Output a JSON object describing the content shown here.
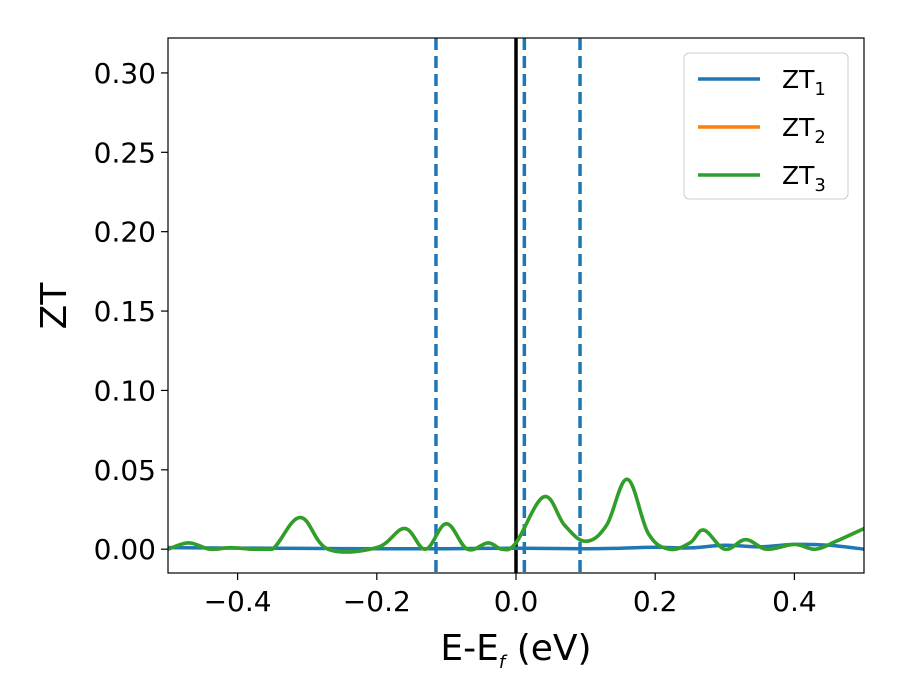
{
  "chart_data": {
    "type": "line",
    "xlabel": "E-E",
    "xlabel_sub": "f",
    "xlabel_unit": " (eV)",
    "ylabel": "ZT",
    "xlim": [
      -0.5,
      0.5
    ],
    "ylim": [
      -0.015,
      0.322
    ],
    "x_ticks": [
      -0.4,
      -0.2,
      0.0,
      0.2,
      0.4
    ],
    "x_tick_labels": [
      "−0.4",
      "−0.2",
      "0.0",
      "0.2",
      "0.4"
    ],
    "y_ticks": [
      0.0,
      0.05,
      0.1,
      0.15,
      0.2,
      0.25,
      0.3
    ],
    "y_tick_labels": [
      "0.00",
      "0.05",
      "0.10",
      "0.15",
      "0.20",
      "0.25",
      "0.30"
    ],
    "grid": false,
    "legend_position": "top-right",
    "vertical_lines": [
      {
        "x": 0.0,
        "style": "solid",
        "color": "#000000"
      },
      {
        "x": -0.115,
        "style": "dashed",
        "color": "#1f77b4"
      },
      {
        "x": 0.012,
        "style": "dashed",
        "color": "#1f77b4"
      },
      {
        "x": 0.092,
        "style": "dashed",
        "color": "#1f77b4"
      }
    ],
    "series": [
      {
        "name": "ZT",
        "name_sub": "1",
        "color": "#1f77b4",
        "x": [
          -0.5,
          -0.4,
          -0.3,
          -0.2,
          -0.1,
          0.0,
          0.1,
          0.15,
          0.2,
          0.25,
          0.3,
          0.35,
          0.4,
          0.45,
          0.5
        ],
        "y": [
          0.001,
          0.0007,
          0.0005,
          0.0003,
          0.0003,
          0.0006,
          0.0003,
          0.0006,
          0.0012,
          0.0008,
          0.0025,
          0.0015,
          0.003,
          0.0025,
          0.0
        ]
      },
      {
        "name": "ZT",
        "name_sub": "2",
        "color": "#ff7f0e",
        "x": [
          -0.5,
          -0.47,
          -0.44,
          -0.41,
          -0.38,
          -0.35,
          -0.31,
          -0.27,
          -0.2,
          -0.16,
          -0.13,
          -0.1,
          -0.07,
          -0.04,
          -0.02,
          0.0,
          0.04,
          0.07,
          0.1,
          0.13,
          0.16,
          0.19,
          0.22,
          0.25,
          0.27,
          0.3,
          0.33,
          0.36,
          0.4,
          0.43,
          0.46,
          0.5
        ],
        "y": [
          0.0,
          0.004,
          0.0,
          0.001,
          0.0,
          0.0,
          0.02,
          0.0,
          0.001,
          0.013,
          0.0,
          0.016,
          0.0,
          0.004,
          0.0,
          0.004,
          0.033,
          0.015,
          0.005,
          0.015,
          0.044,
          0.01,
          0.0,
          0.004,
          0.012,
          0.0,
          0.006,
          0.0,
          0.003,
          0.0,
          0.005,
          0.013
        ]
      },
      {
        "name": "ZT",
        "name_sub": "3",
        "color": "#2ca02c",
        "x": [
          -0.5,
          -0.47,
          -0.44,
          -0.41,
          -0.38,
          -0.35,
          -0.31,
          -0.27,
          -0.2,
          -0.16,
          -0.13,
          -0.1,
          -0.07,
          -0.04,
          -0.02,
          0.0,
          0.04,
          0.07,
          0.1,
          0.13,
          0.16,
          0.19,
          0.22,
          0.25,
          0.27,
          0.3,
          0.33,
          0.36,
          0.4,
          0.43,
          0.46,
          0.5
        ],
        "y": [
          0.0,
          0.004,
          0.0,
          0.001,
          0.0,
          0.0,
          0.02,
          0.0,
          0.001,
          0.013,
          0.0,
          0.016,
          0.0,
          0.004,
          0.0,
          0.004,
          0.033,
          0.015,
          0.005,
          0.015,
          0.044,
          0.01,
          0.0,
          0.004,
          0.012,
          0.0,
          0.006,
          0.0,
          0.003,
          0.0,
          0.005,
          0.013
        ]
      }
    ]
  }
}
